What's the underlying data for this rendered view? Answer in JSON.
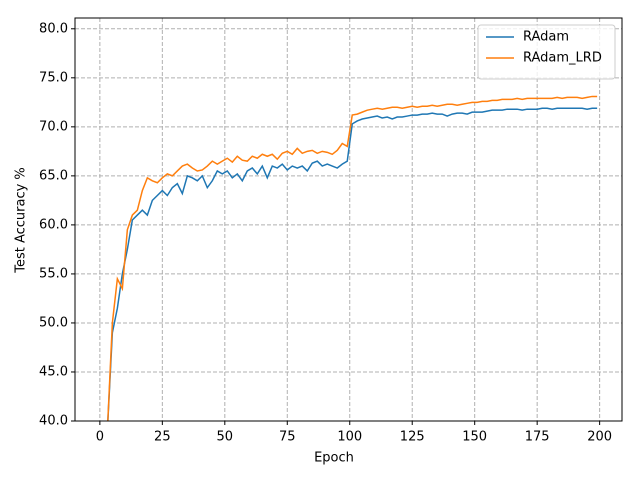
{
  "chart_data": {
    "type": "line",
    "xlabel": "Epoch",
    "ylabel": "Test Accuracy %",
    "x": [
      3,
      5,
      7,
      9,
      11,
      13,
      15,
      17,
      19,
      21,
      23,
      25,
      27,
      29,
      31,
      33,
      35,
      37,
      39,
      41,
      43,
      45,
      47,
      49,
      51,
      53,
      55,
      57,
      59,
      61,
      63,
      65,
      67,
      69,
      71,
      73,
      75,
      77,
      79,
      81,
      83,
      85,
      87,
      89,
      91,
      93,
      95,
      97,
      99,
      101,
      103,
      105,
      107,
      109,
      111,
      113,
      115,
      117,
      119,
      121,
      123,
      125,
      127,
      129,
      131,
      133,
      135,
      137,
      139,
      141,
      143,
      145,
      147,
      149,
      151,
      153,
      155,
      157,
      159,
      161,
      163,
      165,
      167,
      169,
      171,
      173,
      175,
      177,
      179,
      181,
      183,
      185,
      187,
      189,
      191,
      193,
      195,
      197,
      199
    ],
    "series": [
      {
        "name": "RAdam",
        "color": "#1f77b4",
        "values": [
          39,
          49,
          51.5,
          55,
          57.5,
          60.5,
          61,
          61.5,
          61,
          62.5,
          63,
          63.5,
          63,
          63.8,
          64.2,
          63.2,
          65,
          64.8,
          64.5,
          65,
          63.8,
          64.5,
          65.5,
          65.2,
          65.5,
          64.8,
          65.2,
          64.5,
          65.5,
          65.8,
          65.2,
          66,
          64.8,
          66,
          65.8,
          66.2,
          65.6,
          66,
          65.8,
          66,
          65.5,
          66.3,
          66.5,
          66,
          66.2,
          66,
          65.8,
          66.2,
          66.5,
          70.3,
          70.6,
          70.8,
          70.9,
          71,
          71.1,
          70.9,
          71,
          70.8,
          71,
          71,
          71.1,
          71.2,
          71.2,
          71.3,
          71.3,
          71.4,
          71.3,
          71.3,
          71.1,
          71.3,
          71.4,
          71.4,
          71.3,
          71.5,
          71.5,
          71.5,
          71.6,
          71.7,
          71.7,
          71.7,
          71.8,
          71.8,
          71.8,
          71.7,
          71.8,
          71.8,
          71.8,
          71.9,
          71.9,
          71.8,
          71.9,
          71.9,
          71.9,
          71.9,
          71.9,
          71.9,
          71.8,
          71.9,
          71.9
        ]
      },
      {
        "name": "RAdam_LRD",
        "color": "#ff7f0e",
        "values": [
          39,
          50,
          54.5,
          53.5,
          59.5,
          61,
          61.5,
          63.5,
          64.8,
          64.5,
          64.3,
          64.8,
          65.2,
          65,
          65.5,
          66,
          66.2,
          65.8,
          65.5,
          65.6,
          66,
          66.5,
          66.2,
          66.5,
          66.8,
          66.4,
          67,
          66.6,
          66.5,
          67,
          66.8,
          67.2,
          67,
          67.2,
          66.7,
          67.3,
          67.5,
          67.2,
          67.8,
          67.3,
          67.5,
          67.6,
          67.3,
          67.5,
          67.4,
          67.2,
          67.6,
          68.3,
          68,
          71.2,
          71.3,
          71.5,
          71.7,
          71.8,
          71.9,
          71.8,
          71.9,
          72,
          72,
          71.9,
          72,
          72.1,
          72,
          72.1,
          72.1,
          72.2,
          72.1,
          72.2,
          72.3,
          72.3,
          72.2,
          72.3,
          72.4,
          72.5,
          72.5,
          72.6,
          72.6,
          72.7,
          72.7,
          72.8,
          72.8,
          72.8,
          72.9,
          72.8,
          72.9,
          72.9,
          72.9,
          72.9,
          72.9,
          72.9,
          73,
          72.9,
          73,
          73,
          73,
          72.9,
          73,
          73.1,
          73.1
        ]
      }
    ],
    "xlim": [
      -9.95,
      208.95
    ],
    "xticks": [
      0,
      25,
      50,
      75,
      100,
      125,
      150,
      175,
      200
    ],
    "ylim": [
      40,
      81.1
    ],
    "yticks": [
      {
        "value": 40,
        "label": "40.0"
      },
      {
        "value": 45,
        "label": "45.0"
      },
      {
        "value": 50,
        "label": "50.0"
      },
      {
        "value": 55,
        "label": "55.0"
      },
      {
        "value": 60,
        "label": "60.0"
      },
      {
        "value": 65,
        "label": "65.0"
      },
      {
        "value": 70,
        "label": "70.0"
      },
      {
        "value": 75,
        "label": "75.0"
      },
      {
        "value": 80,
        "label": "80.0"
      }
    ],
    "grid": true,
    "legend": "upper right"
  }
}
